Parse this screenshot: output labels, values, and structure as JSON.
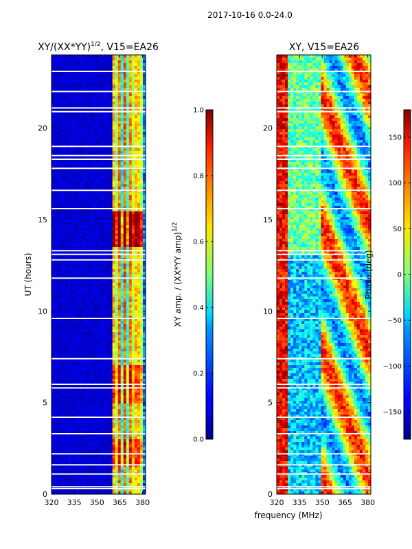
{
  "suptitle": "2017-10-16 0.0-24.0",
  "xlabel": "frequency (MHz)",
  "chart_data": [
    {
      "type": "heatmap",
      "title_main": "XY/(XX*YY)",
      "title_sup": "1/2",
      "title_rest": ", V15=EA26",
      "xlabel": "",
      "ylabel": "UT (hours)",
      "xlim": [
        320,
        382
      ],
      "ylim": [
        0,
        24
      ],
      "xticks": [
        320,
        335,
        350,
        365,
        380
      ],
      "yticks": [
        0,
        5,
        10,
        15,
        20
      ],
      "colorbar": {
        "label_main": "XY amp. / (XX*YY amp)",
        "label_sup": "1/2",
        "range": [
          0.0,
          1.0
        ],
        "ticks": [
          "0.0",
          "0.2",
          "0.4",
          "0.6",
          "0.8",
          "1.0"
        ],
        "colormap": "jet"
      },
      "blank_rows_hours": [
        0.3,
        0.4,
        1.1,
        1.6,
        2.2,
        3.3,
        4.2,
        5.8,
        6.0,
        7.4,
        9.6,
        11.8,
        12.8,
        13.1,
        13.3,
        15.6,
        16.6,
        17.8,
        18.3,
        18.5,
        19.0,
        20.9,
        21.1,
        22.0,
        23.1
      ]
    },
    {
      "type": "heatmap",
      "title_main": "XY, V15=EA26",
      "title_sup": "",
      "title_rest": "",
      "xlabel": "",
      "ylabel": "",
      "xlim": [
        320,
        382
      ],
      "ylim": [
        0,
        24
      ],
      "xticks": [
        320,
        335,
        350,
        365,
        380
      ],
      "yticks": [
        0,
        5,
        10,
        15,
        20
      ],
      "colorbar": {
        "label_main": "Phase (deg)",
        "label_sup": "",
        "range": [
          -180,
          180
        ],
        "ticks": [
          "−150",
          "−100",
          "−50",
          "0",
          "50",
          "100",
          "150"
        ],
        "tick_values": [
          -150,
          -100,
          -50,
          0,
          50,
          100,
          150
        ],
        "colormap": "jet"
      },
      "blank_rows_hours": [
        0.3,
        0.4,
        1.1,
        1.6,
        2.2,
        3.3,
        4.2,
        5.8,
        6.0,
        7.4,
        9.6,
        11.8,
        12.8,
        13.1,
        13.3,
        15.6,
        16.6,
        17.8,
        18.3,
        18.5,
        19.0,
        20.9,
        21.1,
        22.0,
        23.1
      ]
    }
  ]
}
